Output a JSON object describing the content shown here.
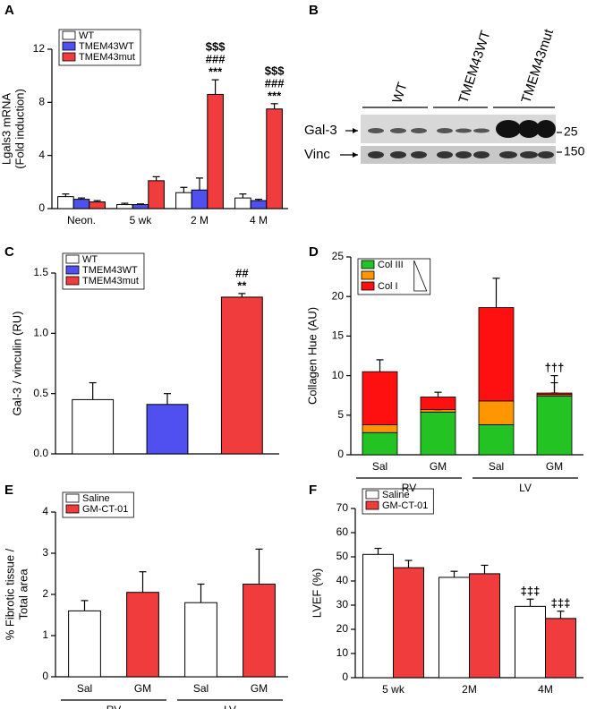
{
  "chart_data": [
    {
      "type": "bar",
      "panel": "A",
      "ylabel": [
        "Lgals3 mRNA",
        "(Fold induction)"
      ],
      "categories": [
        "Neon.",
        "5 wk",
        "2 M",
        "4 M"
      ],
      "series": [
        {
          "name": "WT",
          "color": "#ffffff",
          "values": [
            0.9,
            0.3,
            1.2,
            0.8
          ],
          "errors": [
            0.2,
            0.1,
            0.4,
            0.3
          ]
        },
        {
          "name": "TMEM43WT",
          "color": "#5050f0",
          "values": [
            0.7,
            0.3,
            1.4,
            0.6
          ],
          "errors": [
            0.1,
            0.05,
            0.9,
            0.1
          ]
        },
        {
          "name": "TMEM43mut",
          "color": "#f03c3c",
          "values": [
            0.5,
            2.1,
            8.6,
            7.5
          ],
          "errors": [
            0.1,
            0.3,
            1.1,
            0.4
          ],
          "significance": [
            null,
            null,
            [
              "$$$",
              "###",
              "***"
            ],
            [
              "$$$",
              "###",
              "***"
            ]
          ]
        }
      ],
      "ylim": [
        0,
        12
      ],
      "yticks": [
        0,
        4,
        8,
        12
      ]
    },
    {
      "type": "bar",
      "panel": "C",
      "ylabel": [
        "Gal-3 / vinculin (RU)"
      ],
      "series": [
        {
          "name": "WT",
          "color": "#ffffff",
          "values": [
            0.45
          ],
          "errors": [
            0.14
          ]
        },
        {
          "name": "TMEM43WT",
          "color": "#5050f0",
          "values": [
            0.41
          ],
          "errors": [
            0.09
          ]
        },
        {
          "name": "TMEM43mut",
          "color": "#f03c3c",
          "values": [
            1.3
          ],
          "errors": [
            0.03
          ],
          "significance": [
            [
              "##",
              "**"
            ]
          ]
        }
      ],
      "ylim": [
        0,
        1.5
      ],
      "yticks": [
        {
          "value": 0,
          "label": "0.0"
        },
        0.5,
        {
          "value": 1,
          "label": "1.0"
        },
        1.5
      ]
    },
    {
      "type": "stacked-bar",
      "panel": "D",
      "ylabel": [
        "Collagen Hue (AU)"
      ],
      "categories": [
        "Sal",
        "GM",
        "Sal",
        "GM"
      ],
      "groups": [
        "RV",
        "LV"
      ],
      "series": [
        {
          "name": "Col III",
          "color": "#22c322",
          "values": [
            2.8,
            5.4,
            3.8,
            7.4
          ],
          "errors": [
            0.6,
            0.6,
            1.2,
            0.4
          ]
        },
        {
          "name": null,
          "color": "#ff9600",
          "values": [
            1.0,
            0.3,
            3.0,
            0.2
          ],
          "errors": [
            0.8,
            0,
            1.2,
            1.5
          ]
        },
        {
          "name": "Col I",
          "color": "#ff1010",
          "values": [
            6.7,
            1.6,
            11.8,
            0.2
          ],
          "errors": [
            1.5,
            0.6,
            3.7,
            2.2
          ],
          "significance": [
            null,
            null,
            null,
            [
              "†††"
            ]
          ]
        }
      ],
      "ylim": [
        0,
        25
      ],
      "yticks": [
        0,
        5,
        10,
        15,
        20,
        25
      ]
    },
    {
      "type": "bar",
      "panel": "E",
      "ylabel": [
        "% Fibrotic tissue /",
        "Total area"
      ],
      "categories": [
        "Sal",
        "GM",
        "Sal",
        "GM"
      ],
      "groups": [
        "RV",
        "LV"
      ],
      "series": [
        {
          "name": "Saline",
          "color": "#ffffff",
          "values": [
            1.6,
            null,
            1.8,
            null
          ],
          "errors": [
            0.25,
            null,
            0.45,
            null
          ]
        },
        {
          "name": "GM-CT-01",
          "color": "#f03c3c",
          "values": [
            null,
            2.05,
            null,
            2.25
          ],
          "errors": [
            null,
            0.5,
            null,
            0.85
          ]
        }
      ],
      "ylim": [
        0,
        4
      ],
      "yticks": [
        0,
        1,
        2,
        3,
        4
      ]
    },
    {
      "type": "bar",
      "panel": "F",
      "ylabel": [
        "LVEF (%)"
      ],
      "categories": [
        "5 wk",
        "2M",
        "4M"
      ],
      "series": [
        {
          "name": "Saline",
          "color": "#ffffff",
          "values": [
            51,
            41.5,
            29.5
          ],
          "errors": [
            2.5,
            2.5,
            3
          ],
          "significance": [
            null,
            null,
            [
              "‡‡‡"
            ]
          ]
        },
        {
          "name": "GM-CT-01",
          "color": "#f03c3c",
          "values": [
            45.5,
            43,
            24.5
          ],
          "errors": [
            3,
            3.5,
            3
          ],
          "significance": [
            null,
            null,
            [
              "‡‡‡"
            ]
          ]
        }
      ],
      "ylim": [
        0,
        70
      ],
      "yticks": [
        0,
        10,
        20,
        30,
        40,
        50,
        60,
        70
      ]
    }
  ],
  "blot": {
    "panel": "B",
    "lanes": [
      "WT",
      "TMEM43WT",
      "TMEM43mut"
    ],
    "bands": [
      {
        "label": "Gal-3",
        "size": 25
      },
      {
        "label": "Vinc",
        "size": 150
      }
    ]
  }
}
